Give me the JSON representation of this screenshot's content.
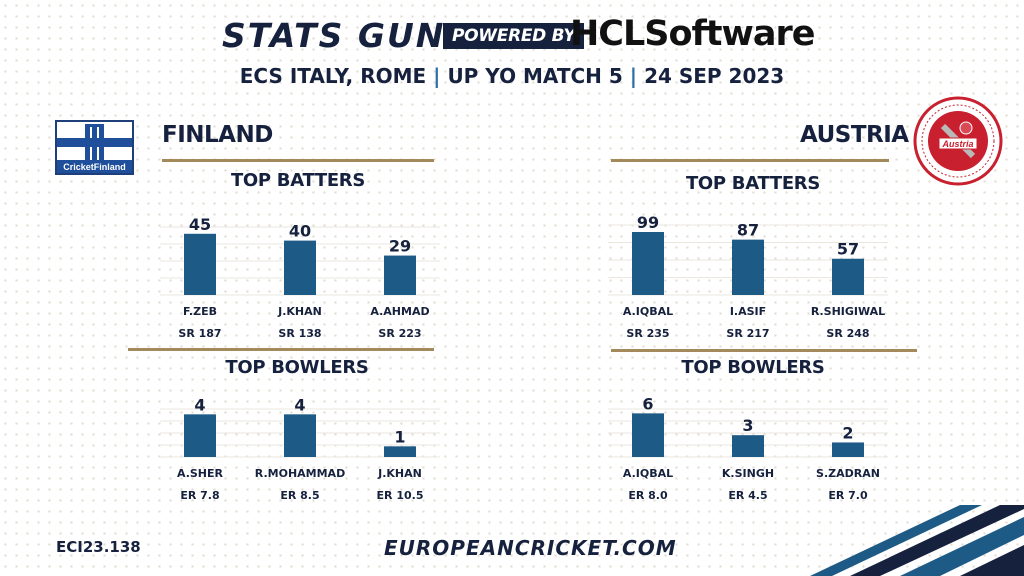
{
  "header": {
    "brand_left": "STATS GUN",
    "powered_by": "POWERED BY",
    "brand_right": "HCLSoftware",
    "match_parts": [
      "ECS ITALY, ROME",
      "|",
      "UP YO MATCH 5",
      "|",
      "24 SEP 2023"
    ]
  },
  "teams": {
    "left": {
      "name": "FINLAND",
      "logo_text": "CricketFinland"
    },
    "right": {
      "name": "AUSTRIA",
      "logo_text": "Austria"
    }
  },
  "sections": {
    "batters": "TOP BATTERS",
    "bowlers": "TOP BOWLERS"
  },
  "chart_data": [
    {
      "type": "bar",
      "team": "FINLAND",
      "title": "TOP BATTERS",
      "categories": [
        "F.ZEB",
        "J.KHAN",
        "A.AHMAD"
      ],
      "values": [
        45,
        40,
        29
      ],
      "sublabels": [
        "SR 187",
        "SR 138",
        "SR 223"
      ],
      "ylim": [
        0,
        50
      ],
      "grid": true
    },
    {
      "type": "bar",
      "team": "FINLAND",
      "title": "TOP BOWLERS",
      "categories": [
        "A.SHER",
        "R.MOHAMMAD",
        "J.KHAN"
      ],
      "values": [
        4,
        4,
        1
      ],
      "sublabels": [
        "ER 7.8",
        "ER 8.5",
        "ER 10.5"
      ],
      "ylim": [
        0,
        4.5
      ],
      "grid": true
    },
    {
      "type": "bar",
      "team": "AUSTRIA",
      "title": "TOP BATTERS",
      "categories": [
        "A.IQBAL",
        "I.ASIF",
        "R.SHIGIWAL"
      ],
      "values": [
        99,
        87,
        57
      ],
      "sublabels": [
        "SR 235",
        "SR 217",
        "SR 248"
      ],
      "ylim": [
        0,
        110
      ],
      "grid": true
    },
    {
      "type": "bar",
      "team": "AUSTRIA",
      "title": "TOP BOWLERS",
      "categories": [
        "A.IQBAL",
        "K.SINGH",
        "S.ZADRAN"
      ],
      "values": [
        6,
        3,
        2
      ],
      "sublabels": [
        "ER 8.0",
        "ER 4.5",
        "ER 7.0"
      ],
      "ylim": [
        0,
        6.6
      ],
      "grid": true
    }
  ],
  "footer": {
    "code": "ECI23.138",
    "website": "EUROPEANCRICKET.COM"
  },
  "colors": {
    "bar": "#1d5a86",
    "navy": "#16213e",
    "gold": "#a48a5a",
    "accent": "#2a6fa8"
  }
}
